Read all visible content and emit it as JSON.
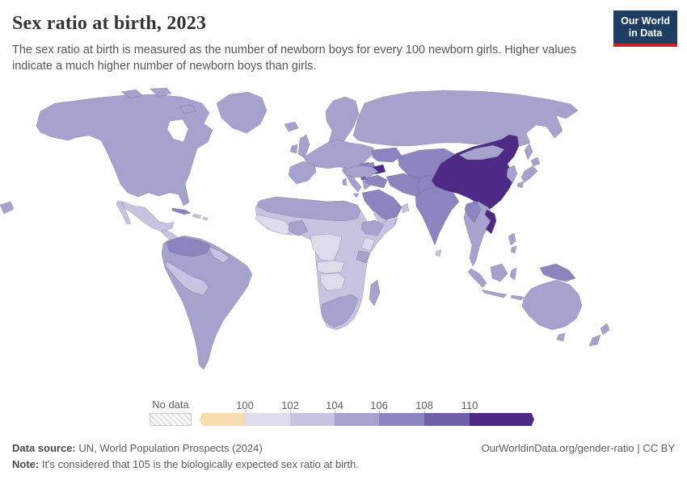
{
  "header": {
    "title": "Sex ratio at birth, 2023",
    "subtitle": "The sex ratio at birth is measured as the number of newborn boys for every 100 newborn girls. Higher values indicate a much higher number of newborn boys than girls.",
    "logo_line1": "Our World",
    "logo_line2": "in Data"
  },
  "legend": {
    "no_data_label": "No data",
    "tick_labels": [
      "100",
      "102",
      "104",
      "106",
      "108",
      "110"
    ],
    "colors": [
      "#f6deb0",
      "#dedbeb",
      "#c7c3e1",
      "#a6a1cd",
      "#8b84be",
      "#6f60a9",
      "#4c2a86"
    ]
  },
  "chart_data": {
    "type": "heatmap",
    "title": "Sex ratio at birth, 2023",
    "unit": "newborn boys per 100 newborn girls",
    "scale_bins": [
      "<100",
      "100-102",
      "102-104",
      "104-106",
      "106-108",
      "108-110",
      ">110"
    ],
    "bin_colors": [
      "#f6deb0",
      "#dedbeb",
      "#c7c3e1",
      "#a6a1cd",
      "#8b84be",
      "#6f60a9",
      "#4c2a86"
    ],
    "legend_position": "bottom",
    "notable_values": {
      "China": ">110",
      "Vietnam": ">110",
      "Azerbaijan": ">110",
      "India": "106-108",
      "Pakistan": "106-108",
      "United States": "104-106",
      "Canada": "104-106",
      "Russia": "104-106",
      "Europe": "104-106",
      "Brazil": "104-106",
      "Australia": "104-106",
      "Sub-Saharan Africa": "100-104",
      "Mexico": "102-104"
    }
  },
  "map": {
    "ocean_color": "#ffffff",
    "border_color": "rgba(100,95,130,0.45)",
    "regions": {
      "north-america": 3,
      "arctic-islands": 3,
      "greenland": 3,
      "iceland": 3,
      "uk-ireland": 3,
      "scandinavia": 3,
      "europe": 3,
      "iberia": 3,
      "italy": 3,
      "balkans": 4,
      "albania": 5,
      "ukraine": 4,
      "russia": 3,
      "kazakhstan": 4,
      "georgia-armenia": 4,
      "azerbaijan": 6,
      "turkey": 3,
      "syria-iraq": 4,
      "saudi": 4,
      "yemen-oman": 2,
      "iran": 4,
      "afghanistan-pakistan": 4,
      "india": 4,
      "sri-lanka": 2,
      "china": 6,
      "mongolia": 3,
      "korea": 3,
      "japan": 3,
      "se-asia": 3,
      "myanmar": 4,
      "vietnam": 6,
      "philippines": 3,
      "indonesia": 3,
      "new-guinea": 4,
      "australia": 3,
      "new-zealand": 3,
      "mexico": 2,
      "central-america": 2,
      "cuba": 4,
      "hispaniola": 2,
      "south-america": 3,
      "colombia-venezuela": 4,
      "guyanas": 2,
      "peru-bolivia": 2,
      "africa": 2,
      "north-africa": 3,
      "west-africa": 1,
      "nigeria": 3,
      "ethiopia": 3,
      "kenya": 1,
      "tanzania": 3,
      "drc": 1,
      "angola-zambia": 1,
      "namibia-botswana": 1,
      "south-africa": 3,
      "madagascar": 3
    }
  },
  "footer": {
    "source_label": "Data source:",
    "source_text": " UN, World Population Prospects (2024)",
    "note_label": "Note:",
    "note_text": " It's considered that 105 is the biologically expected sex ratio at birth.",
    "credit": "OurWorldinData.org/gender-ratio | CC BY"
  }
}
